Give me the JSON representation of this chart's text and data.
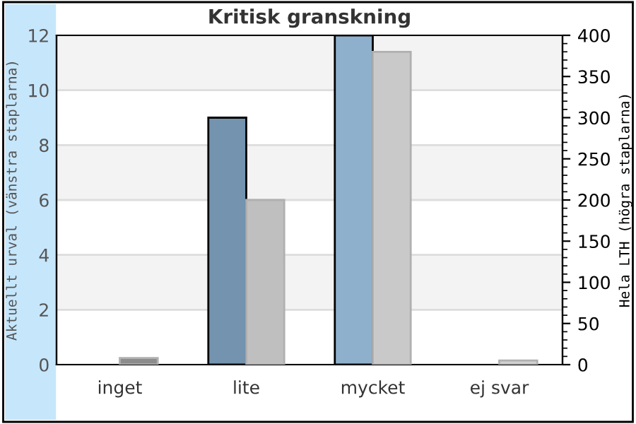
{
  "chart_data": {
    "type": "bar",
    "title": "Kritisk granskning",
    "ylabel": "Aktuellt urval (vänstra staplarna)",
    "y2label": "Hela LTH (högra staplarna)",
    "categories": [
      "inget",
      "lite",
      "mycket",
      "ej svar"
    ],
    "series": [
      {
        "colors": [
          "#7393af",
          "#7393af",
          "#8fb0cc",
          "#7393af"
        ],
        "values": [
          0,
          9,
          12,
          0
        ]
      },
      {
        "axis": "y2",
        "colors": [
          "#8c8c8c",
          "#bfbfbf",
          "#c9c9c9",
          "#d0d0d0"
        ],
        "values": [
          8,
          200,
          380,
          5
        ]
      }
    ],
    "ylim": [
      0,
      12
    ],
    "yticks": [
      0,
      2,
      4,
      6,
      8,
      10,
      12
    ],
    "y2lim": [
      0,
      400
    ],
    "y2ticks": [
      0,
      {
        "value": 10,
        "label": null
      },
      {
        "value": 20,
        "label": null
      },
      {
        "value": 30,
        "label": null
      },
      {
        "value": 40,
        "label": null
      },
      50,
      {
        "value": 60,
        "label": null
      },
      {
        "value": 70,
        "label": null
      },
      {
        "value": 80,
        "label": null
      },
      {
        "value": 90,
        "label": null
      },
      100,
      {
        "value": 110,
        "label": null
      },
      {
        "value": 120,
        "label": null
      },
      {
        "value": 130,
        "label": null
      },
      {
        "value": 140,
        "label": null
      },
      150,
      {
        "value": 160,
        "label": null
      },
      {
        "value": 170,
        "label": null
      },
      {
        "value": 180,
        "label": null
      },
      {
        "value": 190,
        "label": null
      },
      200,
      {
        "value": 210,
        "label": null
      },
      {
        "value": 220,
        "label": null
      },
      {
        "value": 230,
        "label": null
      },
      {
        "value": 240,
        "label": null
      },
      250,
      {
        "value": 260,
        "label": null
      },
      {
        "value": 270,
        "label": null
      },
      {
        "value": 280,
        "label": null
      },
      {
        "value": 290,
        "label": null
      },
      300,
      {
        "value": 310,
        "label": null
      },
      {
        "value": 320,
        "label": null
      },
      {
        "value": 330,
        "label": null
      },
      {
        "value": 340,
        "label": null
      },
      350,
      {
        "value": 360,
        "label": null
      },
      {
        "value": 370,
        "label": null
      },
      {
        "value": 380,
        "label": null
      },
      {
        "value": 390,
        "label": null
      },
      400
    ],
    "bands": [
      {
        "axis": "y",
        "from": 2,
        "to": 4,
        "color": "#f3f3f3"
      },
      {
        "axis": "y",
        "from": 6,
        "to": 8,
        "color": "#f3f3f3"
      },
      {
        "axis": "y",
        "from": 10,
        "to": 12,
        "color": "#f3f3f3"
      }
    ],
    "grid": "y",
    "legend": false
  }
}
